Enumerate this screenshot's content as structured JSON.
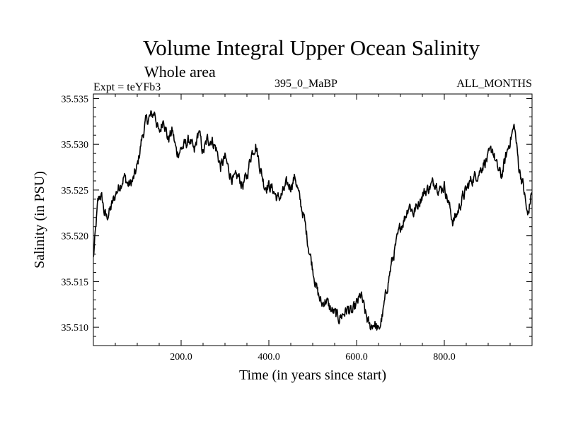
{
  "chart_data": {
    "type": "line",
    "title": "Volume Integral Upper Ocean Salinity",
    "subtitle": "Whole area",
    "experiment_label": "Expt = teYFb3",
    "run_label": "395_0_MaBP",
    "months_label": "ALL_MONTHS",
    "xlabel": "Time (in years since start)",
    "ylabel": "Salinity (in PSU)",
    "xlim": [
      0,
      1000
    ],
    "ylim": [
      35.508,
      35.5355
    ],
    "x_ticks": [
      200,
      400,
      600,
      800
    ],
    "x_tick_labels": [
      "200.0",
      "400.0",
      "600.0",
      "800.0"
    ],
    "y_ticks": [
      35.51,
      35.515,
      35.52,
      35.525,
      35.53,
      35.535
    ],
    "y_tick_labels": [
      "35.510",
      "35.515",
      "35.520",
      "35.525",
      "35.530",
      "35.535"
    ],
    "grid": false,
    "line_color": "#000000",
    "series": [
      {
        "name": "salinity",
        "x": [
          0,
          5,
          10,
          15,
          20,
          25,
          30,
          40,
          50,
          60,
          70,
          80,
          90,
          100,
          110,
          120,
          130,
          140,
          150,
          160,
          170,
          180,
          190,
          200,
          210,
          220,
          230,
          240,
          250,
          260,
          270,
          280,
          290,
          300,
          310,
          320,
          330,
          340,
          350,
          360,
          370,
          380,
          390,
          400,
          410,
          420,
          430,
          440,
          450,
          460,
          470,
          480,
          490,
          500,
          510,
          520,
          530,
          540,
          550,
          560,
          570,
          580,
          590,
          600,
          610,
          620,
          630,
          640,
          650,
          660,
          670,
          680,
          690,
          700,
          710,
          720,
          730,
          740,
          750,
          760,
          770,
          780,
          790,
          800,
          810,
          820,
          830,
          840,
          850,
          860,
          870,
          880,
          890,
          900,
          910,
          920,
          930,
          940,
          950,
          960,
          970,
          980,
          990,
          1000
        ],
        "values": [
          35.5175,
          35.5205,
          35.5235,
          35.5245,
          35.524,
          35.5225,
          35.522,
          35.523,
          35.5245,
          35.5255,
          35.5265,
          35.5255,
          35.526,
          35.5275,
          35.5305,
          35.5325,
          35.533,
          35.5335,
          35.531,
          35.533,
          35.5305,
          35.5315,
          35.529,
          35.5295,
          35.53,
          35.5305,
          35.529,
          35.5315,
          35.529,
          35.5305,
          35.5305,
          35.5295,
          35.5275,
          35.5285,
          35.527,
          35.526,
          35.5265,
          35.5255,
          35.5265,
          35.529,
          35.53,
          35.5275,
          35.5255,
          35.5255,
          35.525,
          35.524,
          35.5245,
          35.5255,
          35.5255,
          35.5265,
          35.524,
          35.522,
          35.519,
          35.5165,
          35.514,
          35.5125,
          35.513,
          35.512,
          35.5115,
          35.511,
          35.5115,
          35.512,
          35.5115,
          35.5125,
          35.5135,
          35.5115,
          35.51,
          35.5105,
          35.5095,
          35.5115,
          35.5145,
          35.517,
          35.519,
          35.521,
          35.522,
          35.5235,
          35.5225,
          35.5235,
          35.5245,
          35.525,
          35.5255,
          35.526,
          35.525,
          35.5255,
          35.5235,
          35.5215,
          35.5225,
          35.524,
          35.525,
          35.526,
          35.5265,
          35.527,
          35.528,
          35.5285,
          35.5295,
          35.5275,
          35.5265,
          35.5285,
          35.5305,
          35.532,
          35.5275,
          35.5255,
          35.522,
          35.525
        ]
      }
    ]
  }
}
